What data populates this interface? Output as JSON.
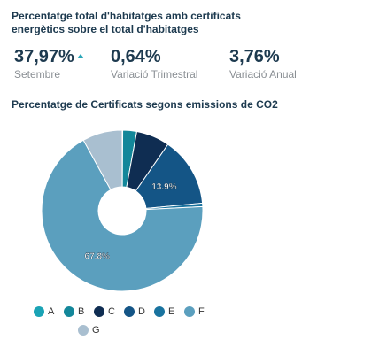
{
  "header": {
    "title": "Percentatge total d'habitatges amb certificats energètics sobre el total d'habitatges"
  },
  "kpis": [
    {
      "value": "37,97%",
      "label": "Setembre",
      "trend": "up-triangle-icon"
    },
    {
      "value": "0,64%",
      "label": "Variació Trimestral"
    },
    {
      "value": "3,76%",
      "label": "Variació Anual"
    }
  ],
  "colors": {
    "A": "#1aa3b5",
    "B": "#13879a",
    "C": "#0f2d52",
    "D": "#145586",
    "E": "#19739f",
    "F": "#5b9fbe",
    "G": "#a9bfd0",
    "trend": "#2aa6b8"
  },
  "chart_data": {
    "type": "pie",
    "title": "Percentatge de Certificats segons emissions de CO2",
    "donut": true,
    "categories": [
      "A",
      "B",
      "C",
      "D",
      "E",
      "F",
      "G"
    ],
    "values": [
      0.1,
      2.8,
      6.7,
      13.9,
      0.7,
      67.8,
      8.0
    ],
    "data_labels": {
      "D": "13.9%",
      "F": "67.8%"
    },
    "legend_position": "bottom"
  }
}
